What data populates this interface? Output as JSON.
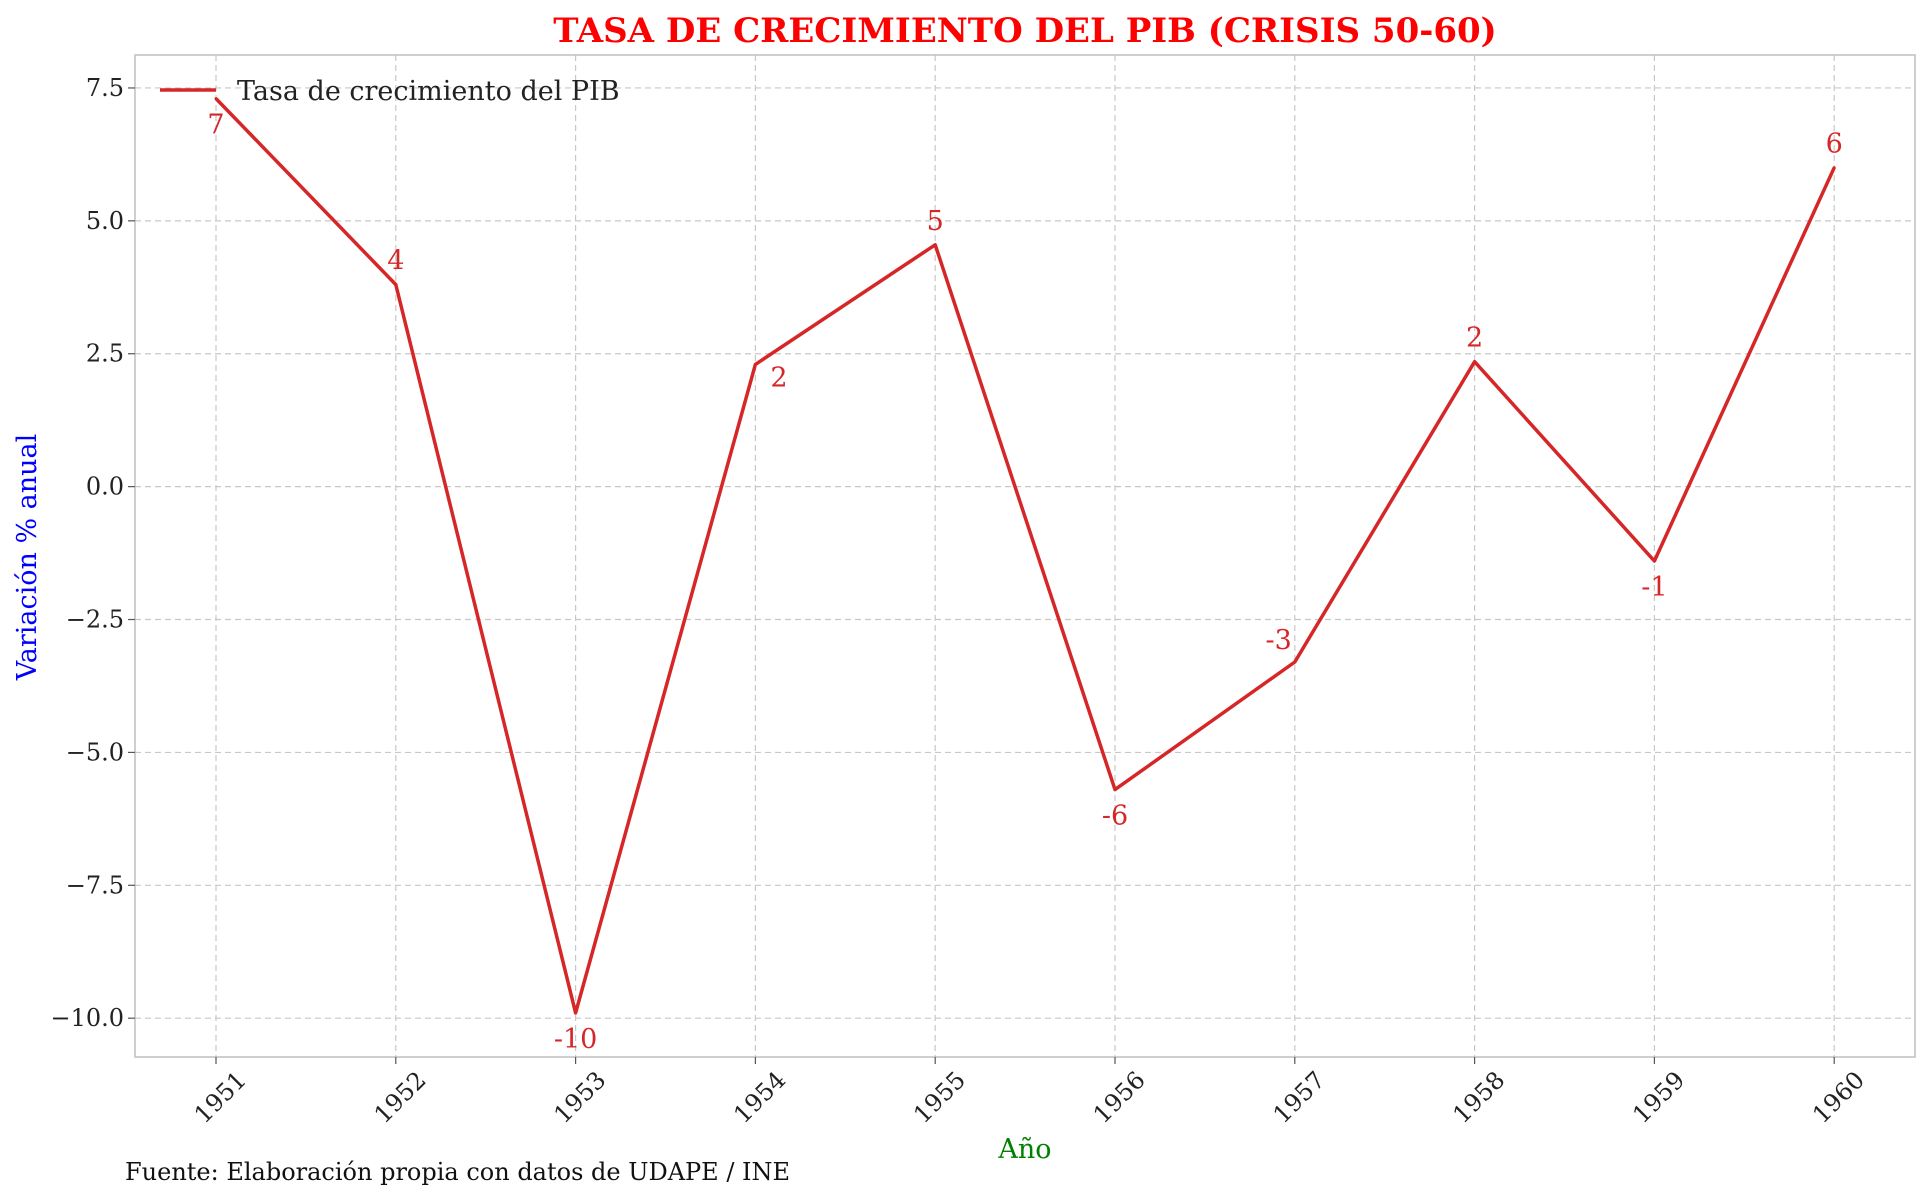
{
  "chart_data": {
    "type": "line",
    "title": "TASA DE CRECIMIENTO DEL PIB (CRISIS 50-60)",
    "xlabel": "Año",
    "ylabel": "Variación % anual",
    "source_note": "Fuente: Elaboración propia con datos de UDAPE / INE",
    "categories": [
      "1951",
      "1952",
      "1953",
      "1954",
      "1955",
      "1956",
      "1957",
      "1958",
      "1959",
      "1960"
    ],
    "series": [
      {
        "name": "Tasa de crecimiento del PIB",
        "values": [
          7.3,
          3.8,
          -9.9,
          2.3,
          4.55,
          -5.7,
          -3.3,
          2.35,
          -1.4,
          6.0
        ],
        "labels": [
          "7",
          "4",
          "-10",
          "2",
          "5",
          "-6",
          "-3",
          "2",
          "-1",
          "6"
        ],
        "color": "#d62728"
      }
    ],
    "yticks": [
      "7.5",
      "5.0",
      "2.5",
      "0.0",
      "−2.5",
      "−5.0",
      "−7.5",
      "−10.0"
    ],
    "ytick_values": [
      7.5,
      5.0,
      2.5,
      0.0,
      -2.5,
      -5.0,
      -7.5,
      -10.0
    ],
    "ylim": [
      -10.73,
      8.12
    ],
    "grid": true,
    "legend_position": "top-left",
    "colors": {
      "title": "#ff0000",
      "xlabel": "#008000",
      "ylabel": "#0000ff",
      "line": "#d62728",
      "grid": "#c8c8c8",
      "frame": "#bfbfbf"
    }
  }
}
